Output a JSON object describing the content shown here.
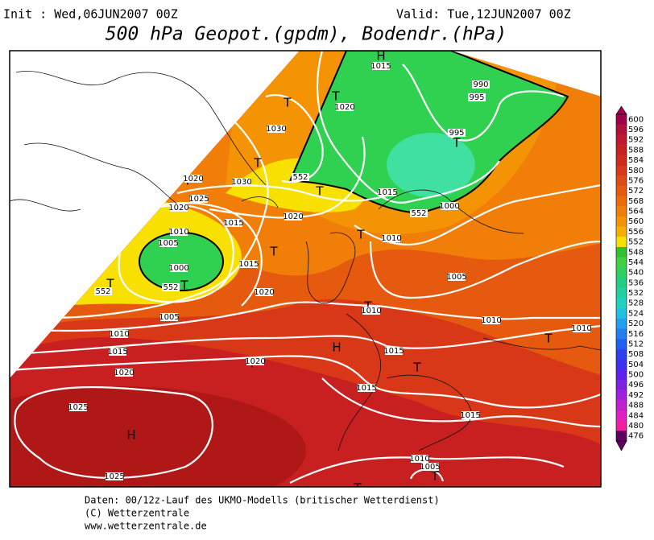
{
  "header": {
    "init": "Init : Wed,06JUN2007 00Z",
    "valid": "Valid: Tue,12JUN2007 00Z",
    "title": "500 hPa Geopot.(gpdm), Bodendr.(hPa)"
  },
  "map": {
    "labels": [
      "H",
      "1015",
      "1020",
      "990",
      "995",
      "995",
      "T",
      "T",
      "1030",
      "T",
      "T",
      "T",
      "1020",
      "1025",
      "1030",
      "552",
      "T",
      "1015",
      "1000",
      "552",
      "1020",
      "1020",
      "1015",
      "1010",
      "1005",
      "1000",
      "T",
      "1015",
      "T",
      "1010",
      "T",
      "552",
      "552",
      "T",
      "1005",
      "1005",
      "1020",
      "T",
      "1010",
      "1010",
      "T",
      "1010",
      "1010",
      "1015",
      "1020",
      "H",
      "1015",
      "T",
      "T",
      "1020",
      "1015",
      "1025",
      "H",
      "1015",
      "1010",
      "1005",
      "T",
      "1025",
      "T"
    ]
  },
  "colorbar": {
    "levels": [
      600,
      596,
      592,
      588,
      584,
      580,
      576,
      572,
      568,
      564,
      560,
      556,
      552,
      548,
      544,
      540,
      536,
      532,
      528,
      524,
      520,
      516,
      512,
      508,
      504,
      500,
      496,
      492,
      488,
      484,
      480,
      476
    ],
    "colors": [
      "#a0004a",
      "#b0103a",
      "#c01830",
      "#c82020",
      "#d02a1a",
      "#d83818",
      "#e04a14",
      "#e65a10",
      "#ec6c0c",
      "#f07e08",
      "#f49404",
      "#f8b000",
      "#f8e000",
      "#30c030",
      "#40d040",
      "#30d060",
      "#20d080",
      "#20d0a0",
      "#20d0c0",
      "#20c0e0",
      "#20a0f0",
      "#2080f0",
      "#2060f0",
      "#3040f0",
      "#4030f0",
      "#6020f0",
      "#8020e0",
      "#a020e0",
      "#c020d0",
      "#e020c0",
      "#f020a0",
      "#600060"
    ]
  },
  "footer": {
    "line1": "Daten: 00/12z-Lauf des UKMO-Modells (britischer Wetterdienst)",
    "line2": "(C) Wetterzentrale",
    "line3": "www.wetterzentrale.de"
  }
}
